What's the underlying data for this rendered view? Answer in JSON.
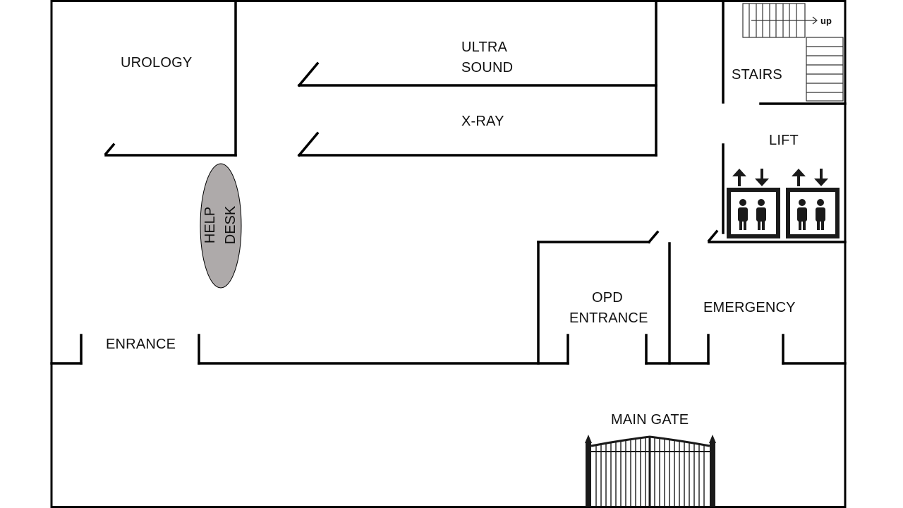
{
  "rooms": {
    "urology": "UROLOGY",
    "ultrasound_line1": "ULTRA",
    "ultrasound_line2": "SOUND",
    "xray": "X-RAY",
    "stairs": "STAIRS",
    "lift": "LIFT",
    "help_desk_line1": "HELP",
    "help_desk_line2": "DESK",
    "opd_line1": "OPD",
    "opd_line2": "ENTRANCE",
    "emergency": "EMERGENCY",
    "entrance": "ENRANCE",
    "main_gate": "MAIN GATE"
  },
  "stairs_direction": "up",
  "icons": [
    "stairs-icon",
    "elevator-icon",
    "up-arrow-icon",
    "down-arrow-icon",
    "person-icon",
    "gate-icon"
  ],
  "colors": {
    "wall": "#000000",
    "help_desk_fill": "#aeaaaa",
    "elevator": "#1a1a1a"
  }
}
